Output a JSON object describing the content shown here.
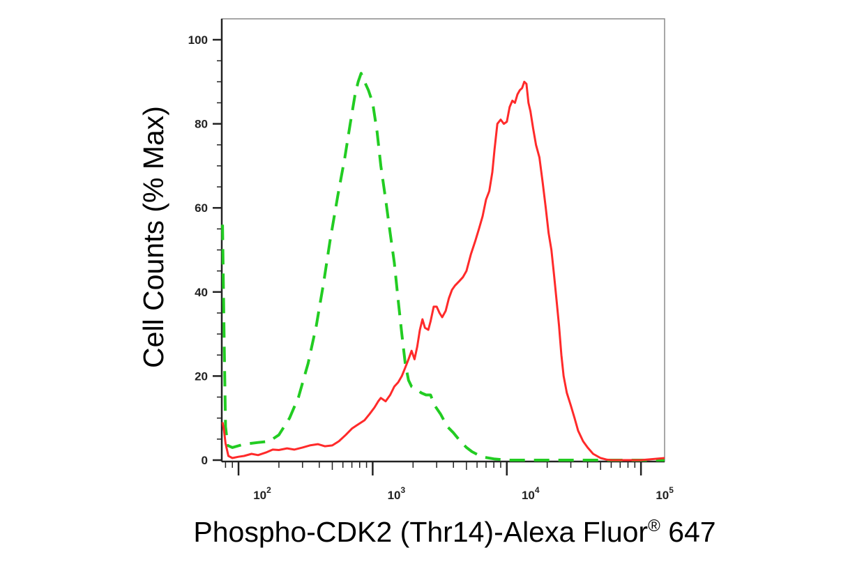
{
  "chart_data": {
    "type": "line",
    "title": "",
    "xlabel": "Phospho-CDK2 (Thr14)-Alexa Fluor",
    "xlabel_superscript": "®",
    "xlabel_suffix": "647",
    "ylabel": "Cell Counts (% Max)",
    "x_scale": "log",
    "xlim": [
      75,
      150000
    ],
    "ylim": [
      0,
      100
    ],
    "grid": false,
    "legend": "none",
    "yticks": [
      0,
      20,
      40,
      60,
      80,
      100
    ],
    "ytick_labels": [
      "0",
      "20",
      "40",
      "60",
      "80",
      "100"
    ],
    "xticks": [
      100,
      1000,
      10000,
      100000
    ],
    "xtick_bases": [
      "10",
      "10",
      "10",
      "10"
    ],
    "xtick_exponents": [
      "2",
      "3",
      "4",
      "5"
    ],
    "series": [
      {
        "color": "#22cc22",
        "dash": "dashed",
        "points": [
          [
            76,
            56
          ],
          [
            78,
            30
          ],
          [
            80,
            8
          ],
          [
            83,
            3.5
          ],
          [
            90,
            3
          ],
          [
            110,
            3.8
          ],
          [
            140,
            4.2
          ],
          [
            170,
            4.5
          ],
          [
            200,
            6
          ],
          [
            240,
            10
          ],
          [
            280,
            15
          ],
          [
            330,
            23
          ],
          [
            380,
            32
          ],
          [
            430,
            42
          ],
          [
            480,
            52
          ],
          [
            550,
            63
          ],
          [
            620,
            72
          ],
          [
            680,
            80
          ],
          [
            740,
            87
          ],
          [
            780,
            90
          ],
          [
            820,
            92
          ],
          [
            870,
            90
          ],
          [
            930,
            88
          ],
          [
            1000,
            85
          ],
          [
            1080,
            78
          ],
          [
            1150,
            70
          ],
          [
            1250,
            62
          ],
          [
            1350,
            54
          ],
          [
            1450,
            47
          ],
          [
            1550,
            38
          ],
          [
            1650,
            30
          ],
          [
            1750,
            23
          ],
          [
            1850,
            19
          ],
          [
            1950,
            17.5
          ],
          [
            2100,
            17
          ],
          [
            2300,
            16
          ],
          [
            2500,
            15.5
          ],
          [
            2700,
            15.5
          ],
          [
            2900,
            13
          ],
          [
            3200,
            11
          ],
          [
            3600,
            8
          ],
          [
            4000,
            6.5
          ],
          [
            4500,
            4.5
          ],
          [
            5000,
            3
          ],
          [
            5500,
            2
          ],
          [
            6500,
            0.8
          ],
          [
            8000,
            0.3
          ],
          [
            10000,
            0
          ],
          [
            30000,
            0
          ],
          [
            150000,
            0
          ]
        ]
      },
      {
        "color": "#ff2a2a",
        "dash": "solid",
        "points": [
          [
            76,
            9
          ],
          [
            78,
            7
          ],
          [
            80,
            4
          ],
          [
            84,
            1
          ],
          [
            90,
            0.5
          ],
          [
            100,
            0.8
          ],
          [
            110,
            1
          ],
          [
            125,
            1.5
          ],
          [
            140,
            1.2
          ],
          [
            160,
            1.8
          ],
          [
            180,
            2.5
          ],
          [
            200,
            2.4
          ],
          [
            230,
            2.8
          ],
          [
            260,
            2.5
          ],
          [
            300,
            3
          ],
          [
            340,
            3.5
          ],
          [
            390,
            3.8
          ],
          [
            440,
            3.3
          ],
          [
            500,
            3.5
          ],
          [
            560,
            4.5
          ],
          [
            630,
            6
          ],
          [
            700,
            7.5
          ],
          [
            780,
            8.5
          ],
          [
            870,
            9.5
          ],
          [
            950,
            11
          ],
          [
            1030,
            12.5
          ],
          [
            1100,
            14
          ],
          [
            1150,
            14.8
          ],
          [
            1250,
            14
          ],
          [
            1350,
            15.5
          ],
          [
            1450,
            17.5
          ],
          [
            1550,
            18.5
          ],
          [
            1650,
            20
          ],
          [
            1750,
            22
          ],
          [
            1850,
            24
          ],
          [
            1950,
            26
          ],
          [
            2050,
            24
          ],
          [
            2150,
            27
          ],
          [
            2250,
            31
          ],
          [
            2350,
            33.5
          ],
          [
            2450,
            31.5
          ],
          [
            2600,
            31
          ],
          [
            2700,
            33
          ],
          [
            2850,
            36.5
          ],
          [
            3000,
            36.5
          ],
          [
            3150,
            35
          ],
          [
            3300,
            34
          ],
          [
            3500,
            35.5
          ],
          [
            3700,
            38.5
          ],
          [
            3900,
            40.5
          ],
          [
            4100,
            41.5
          ],
          [
            4400,
            42.5
          ],
          [
            4700,
            43.5
          ],
          [
            5000,
            45
          ],
          [
            5400,
            49
          ],
          [
            5800,
            52
          ],
          [
            6200,
            55
          ],
          [
            6600,
            58
          ],
          [
            7000,
            62
          ],
          [
            7400,
            64
          ],
          [
            7800,
            68.5
          ],
          [
            8100,
            74
          ],
          [
            8500,
            80
          ],
          [
            9000,
            81
          ],
          [
            9500,
            80
          ],
          [
            10000,
            80.5
          ],
          [
            10500,
            84
          ],
          [
            11000,
            85.5
          ],
          [
            11500,
            85
          ],
          [
            12000,
            87
          ],
          [
            12500,
            88
          ],
          [
            13000,
            88.5
          ],
          [
            13500,
            90
          ],
          [
            14000,
            89.5
          ],
          [
            14500,
            85
          ],
          [
            15000,
            83
          ],
          [
            15700,
            79
          ],
          [
            16500,
            75
          ],
          [
            17500,
            72
          ],
          [
            18500,
            66
          ],
          [
            19500,
            60
          ],
          [
            20500,
            54
          ],
          [
            21500,
            50
          ],
          [
            22500,
            44
          ],
          [
            23500,
            38
          ],
          [
            24500,
            32
          ],
          [
            25500,
            25
          ],
          [
            26500,
            20
          ],
          [
            28000,
            16
          ],
          [
            30000,
            13
          ],
          [
            32000,
            10
          ],
          [
            34000,
            7
          ],
          [
            37000,
            4.5
          ],
          [
            40000,
            3
          ],
          [
            44000,
            1.5
          ],
          [
            50000,
            0.5
          ],
          [
            56000,
            0.1
          ],
          [
            60000,
            0
          ],
          [
            100000,
            0
          ],
          [
            150000,
            0.5
          ]
        ]
      }
    ]
  }
}
